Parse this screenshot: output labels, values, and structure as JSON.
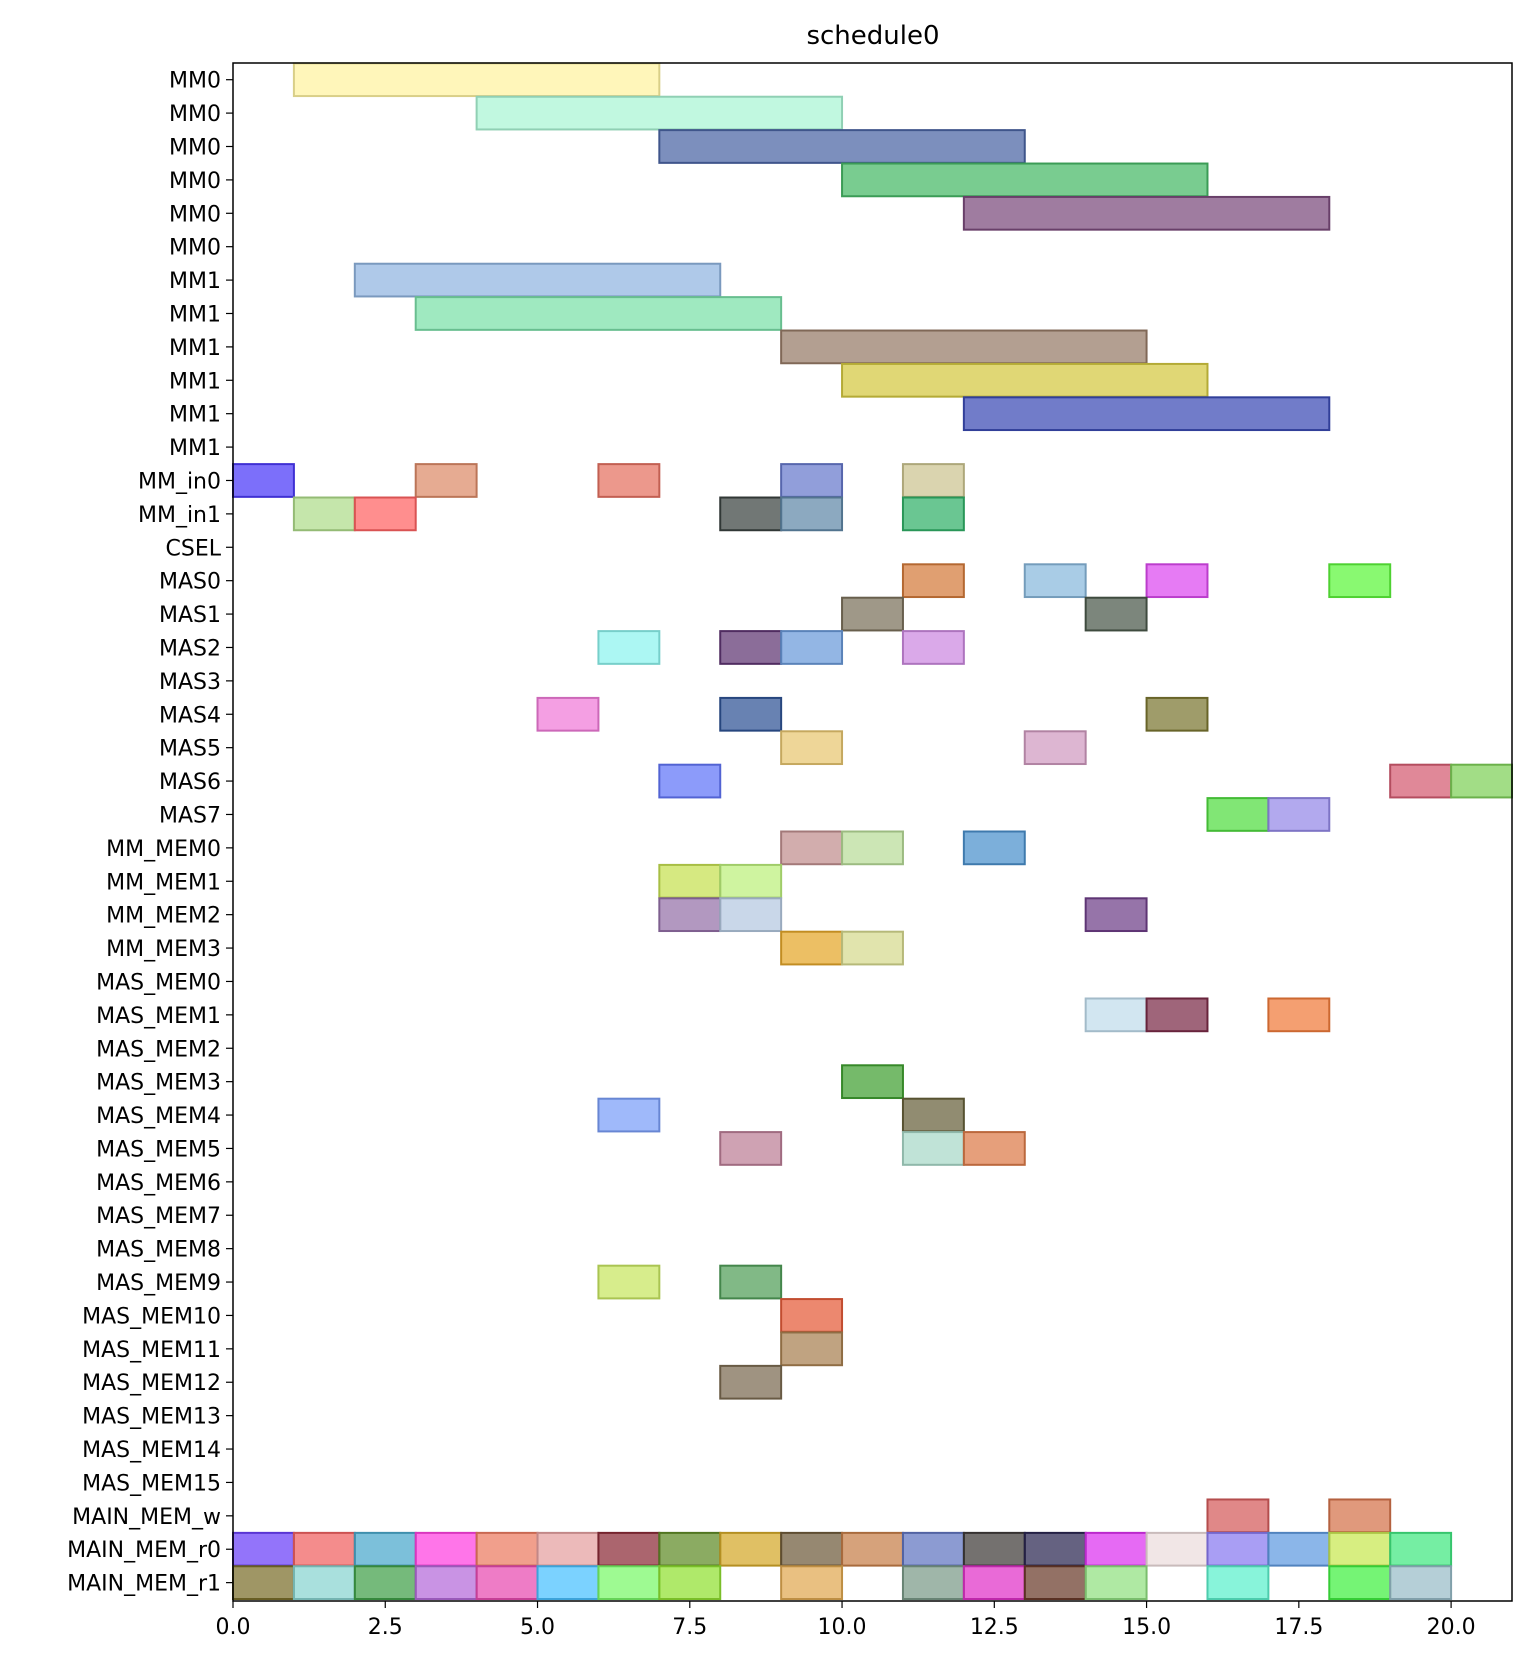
{
  "chart_data": {
    "type": "gantt",
    "title": "schedule0",
    "xlim": [
      0,
      21
    ],
    "xticks": [
      "0.0",
      "2.5",
      "5.0",
      "7.5",
      "10.0",
      "12.5",
      "15.0",
      "17.5",
      "20.0"
    ],
    "xtick_values": [
      0,
      2.5,
      5,
      7.5,
      10,
      12.5,
      15,
      17.5,
      20
    ],
    "grid": false,
    "rows": [
      "MM0",
      "MM0",
      "MM0",
      "MM0",
      "MM0",
      "MM0",
      "MM1",
      "MM1",
      "MM1",
      "MM1",
      "MM1",
      "MM1",
      "MM_in0",
      "MM_in1",
      "CSEL",
      "MAS0",
      "MAS1",
      "MAS2",
      "MAS3",
      "MAS4",
      "MAS5",
      "MAS6",
      "MAS7",
      "MM_MEM0",
      "MM_MEM1",
      "MM_MEM2",
      "MM_MEM3",
      "MAS_MEM0",
      "MAS_MEM1",
      "MAS_MEM2",
      "MAS_MEM3",
      "MAS_MEM4",
      "MAS_MEM5",
      "MAS_MEM6",
      "MAS_MEM7",
      "MAS_MEM8",
      "MAS_MEM9",
      "MAS_MEM10",
      "MAS_MEM11",
      "MAS_MEM12",
      "MAS_MEM13",
      "MAS_MEM14",
      "MAS_MEM15",
      "MAIN_MEM_w",
      "MAIN_MEM_r0",
      "MAIN_MEM_r1"
    ],
    "bars": [
      {
        "row": 0,
        "start": 1,
        "end": 7,
        "color": "#fff3a0"
      },
      {
        "row": 1,
        "start": 4,
        "end": 10,
        "color": "#a9f5d4"
      },
      {
        "row": 2,
        "start": 7,
        "end": 13,
        "color": "#4a64a4"
      },
      {
        "row": 3,
        "start": 10,
        "end": 16,
        "color": "#45b865"
      },
      {
        "row": 4,
        "start": 12,
        "end": 18,
        "color": "#7a4a7c"
      },
      {
        "row": 6,
        "start": 2,
        "end": 8,
        "color": "#90b4e0"
      },
      {
        "row": 7,
        "start": 3,
        "end": 9,
        "color": "#7ae0a8"
      },
      {
        "row": 8,
        "start": 9,
        "end": 15,
        "color": "#967a66"
      },
      {
        "row": 9,
        "start": 10,
        "end": 16,
        "color": "#d4c840"
      },
      {
        "row": 10,
        "start": 12,
        "end": 18,
        "color": "#3a4ab4"
      },
      {
        "row": 12,
        "start": 0,
        "end": 1,
        "color": "#4a38f8"
      },
      {
        "row": 12,
        "start": 3,
        "end": 4,
        "color": "#dc8a68"
      },
      {
        "row": 12,
        "start": 6,
        "end": 7,
        "color": "#e47060"
      },
      {
        "row": 12,
        "start": 9,
        "end": 10,
        "color": "#6678cc"
      },
      {
        "row": 12,
        "start": 11,
        "end": 12,
        "color": "#ccc490"
      },
      {
        "row": 13,
        "start": 1,
        "end": 2,
        "color": "#aedc8a"
      },
      {
        "row": 13,
        "start": 2,
        "end": 3,
        "color": "#ff6262"
      },
      {
        "row": 13,
        "start": 8,
        "end": 9,
        "color": "#3a4240"
      },
      {
        "row": 13,
        "start": 9,
        "end": 10,
        "color": "#6088a8"
      },
      {
        "row": 13,
        "start": 11,
        "end": 12,
        "color": "#30b068"
      },
      {
        "row": 15,
        "start": 11,
        "end": 12,
        "color": "#d47a3a"
      },
      {
        "row": 15,
        "start": 13,
        "end": 14,
        "color": "#88b8dc"
      },
      {
        "row": 15,
        "start": 15,
        "end": 16,
        "color": "#dc48f0"
      },
      {
        "row": 15,
        "start": 18,
        "end": 19,
        "color": "#5cf63a"
      },
      {
        "row": 16,
        "start": 10,
        "end": 11,
        "color": "#7a705a"
      },
      {
        "row": 16,
        "start": 14,
        "end": 15,
        "color": "#4a584a"
      },
      {
        "row": 17,
        "start": 6,
        "end": 7,
        "color": "#8cf4ee"
      },
      {
        "row": 17,
        "start": 8,
        "end": 9,
        "color": "#5e3472"
      },
      {
        "row": 17,
        "start": 9,
        "end": 10,
        "color": "#6a9ada"
      },
      {
        "row": 17,
        "start": 11,
        "end": 12,
        "color": "#cc88e0"
      },
      {
        "row": 19,
        "start": 5,
        "end": 6,
        "color": "#f07ad8"
      },
      {
        "row": 19,
        "start": 8,
        "end": 9,
        "color": "#2e5294"
      },
      {
        "row": 19,
        "start": 15,
        "end": 16,
        "color": "#7a7630"
      },
      {
        "row": 20,
        "start": 9,
        "end": 10,
        "color": "#e8c670"
      },
      {
        "row": 20,
        "start": 13,
        "end": 14,
        "color": "#d09ac0"
      },
      {
        "row": 21,
        "start": 7,
        "end": 8,
        "color": "#6074f8"
      },
      {
        "row": 21,
        "start": 19,
        "end": 20,
        "color": "#d45a70"
      },
      {
        "row": 21,
        "start": 20,
        "end": 21,
        "color": "#7ed058"
      },
      {
        "row": 22,
        "start": 16,
        "end": 17,
        "color": "#50dc40"
      },
      {
        "row": 22,
        "start": 17,
        "end": 18,
        "color": "#9488e8"
      },
      {
        "row": 23,
        "start": 9,
        "end": 10,
        "color": "#c08e8e"
      },
      {
        "row": 23,
        "start": 10,
        "end": 11,
        "color": "#b8dc98"
      },
      {
        "row": 23,
        "start": 12,
        "end": 13,
        "color": "#4a90cc"
      },
      {
        "row": 24,
        "start": 7,
        "end": 8,
        "color": "#c6e050"
      },
      {
        "row": 24,
        "start": 8,
        "end": 9,
        "color": "#bcf07c"
      },
      {
        "row": 25,
        "start": 7,
        "end": 8,
        "color": "#9470a8"
      },
      {
        "row": 25,
        "start": 8,
        "end": 9,
        "color": "#b4c8e0"
      },
      {
        "row": 25,
        "start": 14,
        "end": 15,
        "color": "#6e3e88"
      },
      {
        "row": 26,
        "start": 9,
        "end": 10,
        "color": "#e4a628"
      },
      {
        "row": 26,
        "start": 10,
        "end": 11,
        "color": "#d6da8e"
      },
      {
        "row": 28,
        "start": 14,
        "end": 15,
        "color": "#c0dcec"
      },
      {
        "row": 28,
        "start": 15,
        "end": 16,
        "color": "#7a2a46"
      },
      {
        "row": 28,
        "start": 17,
        "end": 18,
        "color": "#f07a3a"
      },
      {
        "row": 30,
        "start": 10,
        "end": 11,
        "color": "#40a030"
      },
      {
        "row": 31,
        "start": 6,
        "end": 7,
        "color": "#7a9ef8"
      },
      {
        "row": 31,
        "start": 11,
        "end": 12,
        "color": "#66603a"
      },
      {
        "row": 32,
        "start": 8,
        "end": 9,
        "color": "#bc7e96"
      },
      {
        "row": 32,
        "start": 11,
        "end": 12,
        "color": "#a8d8c8"
      },
      {
        "row": 32,
        "start": 12,
        "end": 13,
        "color": "#dc7a48"
      },
      {
        "row": 36,
        "start": 6,
        "end": 7,
        "color": "#c8e660"
      },
      {
        "row": 36,
        "start": 8,
        "end": 9,
        "color": "#509e58"
      },
      {
        "row": 37,
        "start": 9,
        "end": 10,
        "color": "#e45a38"
      },
      {
        "row": 38,
        "start": 9,
        "end": 10,
        "color": "#a88050"
      },
      {
        "row": 39,
        "start": 8,
        "end": 9,
        "color": "#7a6a50"
      },
      {
        "row": 43,
        "start": 16,
        "end": 17,
        "color": "#d45a5a"
      },
      {
        "row": 43,
        "start": 18,
        "end": 19,
        "color": "#d4724a"
      },
      {
        "row": 44,
        "start": 0,
        "end": 1,
        "color": "#6a3ef8"
      },
      {
        "row": 44,
        "start": 1,
        "end": 2,
        "color": "#f06060"
      },
      {
        "row": 44,
        "start": 2,
        "end": 3,
        "color": "#4aa8cc"
      },
      {
        "row": 44,
        "start": 3,
        "end": 4,
        "color": "#ff40e0"
      },
      {
        "row": 44,
        "start": 4,
        "end": 5,
        "color": "#ec7a60"
      },
      {
        "row": 44,
        "start": 5,
        "end": 6,
        "color": "#e4a0a0"
      },
      {
        "row": 44,
        "start": 6,
        "end": 7,
        "color": "#8a2a36"
      },
      {
        "row": 44,
        "start": 7,
        "end": 8,
        "color": "#5e8a26"
      },
      {
        "row": 44,
        "start": 8,
        "end": 9,
        "color": "#d4a828"
      },
      {
        "row": 44,
        "start": 9,
        "end": 10,
        "color": "#6e5a3a"
      },
      {
        "row": 44,
        "start": 10,
        "end": 11,
        "color": "#c67e48"
      },
      {
        "row": 44,
        "start": 11,
        "end": 12,
        "color": "#6074c0"
      },
      {
        "row": 44,
        "start": 12,
        "end": 13,
        "color": "#3e3a38"
      },
      {
        "row": 44,
        "start": 13,
        "end": 14,
        "color": "#2a2650"
      },
      {
        "row": 44,
        "start": 14,
        "end": 15,
        "color": "#dc30f0"
      },
      {
        "row": 44,
        "start": 15,
        "end": 16,
        "color": "#ecdcdc"
      },
      {
        "row": 44,
        "start": 16,
        "end": 17,
        "color": "#8878f0"
      },
      {
        "row": 44,
        "start": 17,
        "end": 18,
        "color": "#5e9ae0"
      },
      {
        "row": 44,
        "start": 18,
        "end": 19,
        "color": "#c8e850"
      },
      {
        "row": 44,
        "start": 19,
        "end": 20,
        "color": "#40e880"
      },
      {
        "row": 45,
        "start": 0,
        "end": 1,
        "color": "#7a6e2a"
      },
      {
        "row": 45,
        "start": 1,
        "end": 2,
        "color": "#88d4d0"
      },
      {
        "row": 45,
        "start": 2,
        "end": 3,
        "color": "#40a048"
      },
      {
        "row": 45,
        "start": 3,
        "end": 4,
        "color": "#b46ada"
      },
      {
        "row": 45,
        "start": 4,
        "end": 5,
        "color": "#e84ab0"
      },
      {
        "row": 45,
        "start": 5,
        "end": 6,
        "color": "#48c0ff"
      },
      {
        "row": 45,
        "start": 6,
        "end": 7,
        "color": "#78f868"
      },
      {
        "row": 45,
        "start": 7,
        "end": 8,
        "color": "#90e030"
      },
      {
        "row": 45,
        "start": 9,
        "end": 10,
        "color": "#e0a850"
      },
      {
        "row": 45,
        "start": 11,
        "end": 12,
        "color": "#7a9a88"
      },
      {
        "row": 45,
        "start": 12,
        "end": 13,
        "color": "#e030c8"
      },
      {
        "row": 45,
        "start": 13,
        "end": 14,
        "color": "#6a3a2a"
      },
      {
        "row": 45,
        "start": 14,
        "end": 15,
        "color": "#90e080"
      },
      {
        "row": 45,
        "start": 16,
        "end": 17,
        "color": "#5af0cc"
      },
      {
        "row": 45,
        "start": 18,
        "end": 19,
        "color": "#40f040"
      },
      {
        "row": 45,
        "start": 19,
        "end": 20,
        "color": "#98bcc8"
      }
    ]
  }
}
